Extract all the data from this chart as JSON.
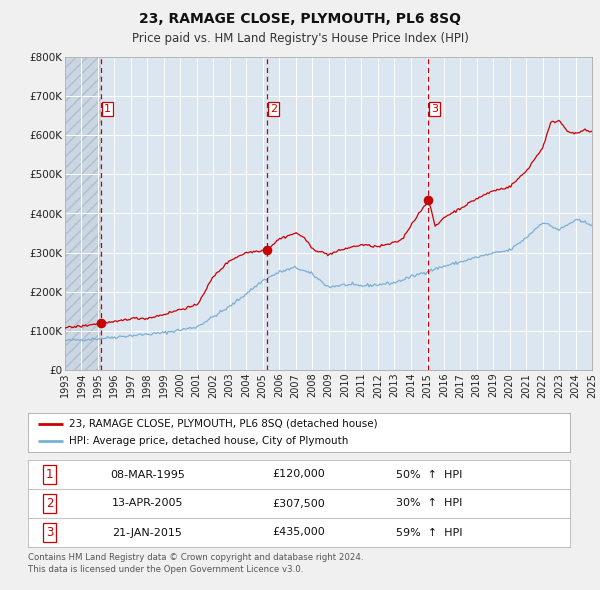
{
  "title": "23, RAMAGE CLOSE, PLYMOUTH, PL6 8SQ",
  "subtitle": "Price paid vs. HM Land Registry's House Price Index (HPI)",
  "bg_color": "#e8eef5",
  "plot_bg_color": "#dce6f0",
  "grid_color": "#ffffff",
  "red_line_color": "#cc0000",
  "blue_line_color": "#7bafd4",
  "sale_marker_color": "#cc0000",
  "vline_color": "#cc0000",
  "xmin": 1993,
  "xmax": 2025,
  "ymin": 0,
  "ymax": 800000,
  "yticks": [
    0,
    100000,
    200000,
    300000,
    400000,
    500000,
    600000,
    700000,
    800000
  ],
  "ytick_labels": [
    "£0",
    "£100K",
    "£200K",
    "£300K",
    "£400K",
    "£500K",
    "£600K",
    "£700K",
    "£800K"
  ],
  "xticks": [
    1993,
    1994,
    1995,
    1996,
    1997,
    1998,
    1999,
    2000,
    2001,
    2002,
    2003,
    2004,
    2005,
    2006,
    2007,
    2008,
    2009,
    2010,
    2011,
    2012,
    2013,
    2014,
    2015,
    2016,
    2017,
    2018,
    2019,
    2020,
    2021,
    2022,
    2023,
    2024,
    2025
  ],
  "sales": [
    {
      "num": 1,
      "date": "08-MAR-1995",
      "price": 120000,
      "pct": "50%",
      "dir": "↑",
      "x": 1995.19
    },
    {
      "num": 2,
      "date": "13-APR-2005",
      "price": 307500,
      "pct": "30%",
      "dir": "↑",
      "x": 2005.28
    },
    {
      "num": 3,
      "date": "21-JAN-2015",
      "price": 435000,
      "pct": "59%",
      "dir": "↑",
      "x": 2015.06
    }
  ],
  "legend_red_label": "23, RAMAGE CLOSE, PLYMOUTH, PL6 8SQ (detached house)",
  "legend_blue_label": "HPI: Average price, detached house, City of Plymouth",
  "footnote1": "Contains HM Land Registry data © Crown copyright and database right 2024.",
  "footnote2": "This data is licensed under the Open Government Licence v3.0.",
  "hpi_anchors_x": [
    1993,
    1995,
    1997,
    1999,
    2001,
    2003,
    2005,
    2006,
    2007,
    2008,
    2009,
    2010,
    2011,
    2012,
    2013,
    2014,
    2015,
    2016,
    2017,
    2018,
    2019,
    2020,
    2021,
    2022,
    2023,
    2024,
    2025
  ],
  "hpi_anchors_y": [
    75000,
    80000,
    88000,
    95000,
    110000,
    162000,
    228000,
    250000,
    262000,
    245000,
    212000,
    218000,
    215000,
    218000,
    223000,
    238000,
    252000,
    265000,
    276000,
    288000,
    298000,
    306000,
    338000,
    378000,
    358000,
    383000,
    372000
  ],
  "red_anchors_x": [
    1993,
    1994,
    1995.19,
    1996,
    1997,
    1998,
    1999,
    2000,
    2001,
    2002,
    2003,
    2004,
    2005.28,
    2006,
    2007,
    2007.5,
    2008,
    2009,
    2010,
    2011,
    2012,
    2013,
    2013.5,
    2014,
    2015.06,
    2015.5,
    2016,
    2017,
    2018,
    2019,
    2020,
    2021,
    2022,
    2022.5,
    2023,
    2023.5,
    2024,
    2024.5,
    2025
  ],
  "red_anchors_y": [
    108000,
    112000,
    120000,
    122000,
    132000,
    132000,
    142000,
    155000,
    165000,
    238000,
    280000,
    300000,
    307500,
    335000,
    350000,
    340000,
    310000,
    295000,
    310000,
    320000,
    315000,
    325000,
    335000,
    370000,
    435000,
    365000,
    390000,
    413000,
    438000,
    458000,
    468000,
    508000,
    568000,
    632000,
    638000,
    612000,
    603000,
    613000,
    608000
  ]
}
